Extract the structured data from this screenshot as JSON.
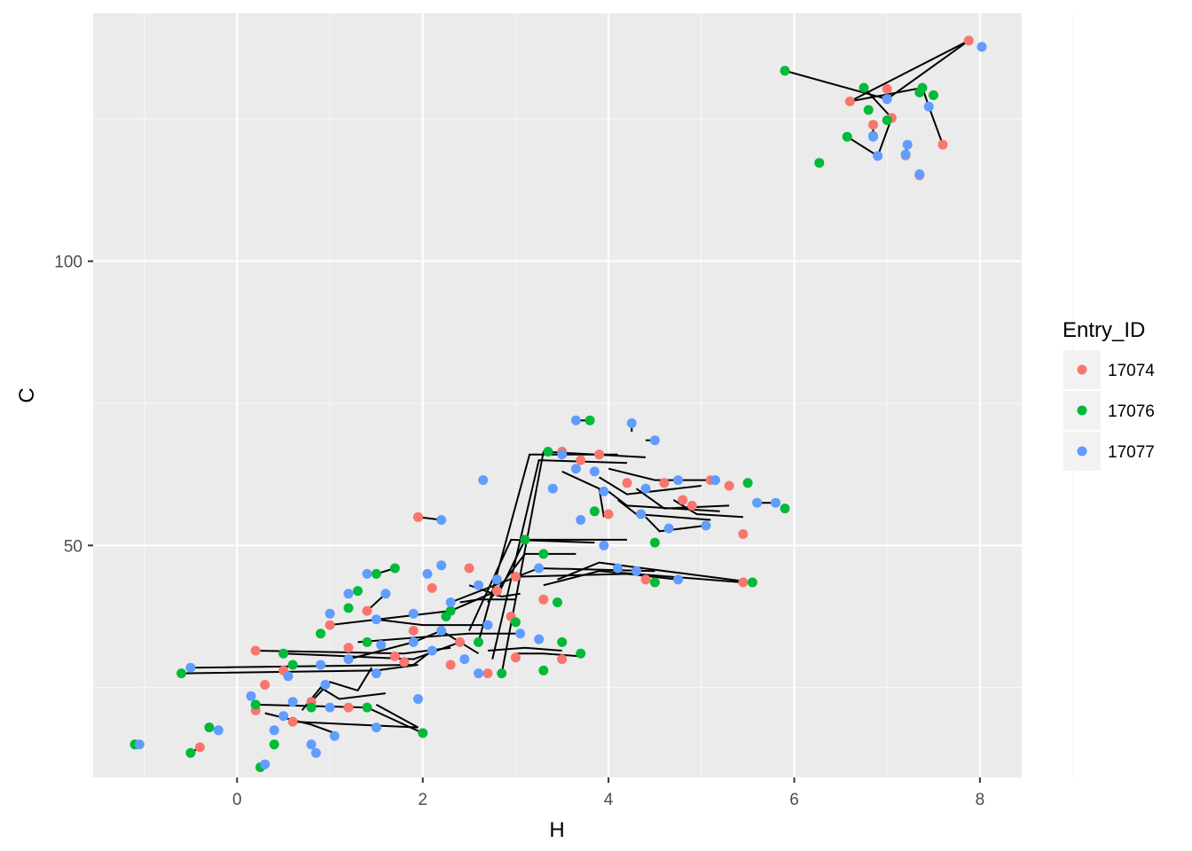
{
  "chart_data": {
    "type": "scatter",
    "title": "",
    "xlabel": "H",
    "ylabel": "C",
    "xlim": [
      -1.55,
      8.45
    ],
    "ylim": [
      9.2,
      143.6
    ],
    "x_ticks": [
      0,
      2,
      4,
      6,
      8
    ],
    "y_ticks": [
      50,
      100
    ],
    "grid": true,
    "legend_title": "Entry_ID",
    "legend_position": "right",
    "series": [
      {
        "name": "17074",
        "color": "#F8766D",
        "points": [
          [
            7.88,
            138.8
          ],
          [
            6.6,
            128.1
          ],
          [
            7.0,
            130.3
          ],
          [
            7.05,
            125.2
          ],
          [
            7.6,
            120.5
          ],
          [
            7.35,
            115.1
          ],
          [
            7.2,
            118.6
          ],
          [
            6.85,
            124.0
          ],
          [
            1.95,
            55.0
          ],
          [
            3.5,
            66.5
          ],
          [
            3.9,
            66.0
          ],
          [
            4.6,
            61.0
          ],
          [
            5.1,
            61.5
          ],
          [
            5.3,
            60.5
          ],
          [
            5.45,
            52.0
          ],
          [
            5.45,
            43.5
          ],
          [
            4.9,
            57.0
          ],
          [
            3.5,
            30.0
          ],
          [
            3.0,
            30.3
          ],
          [
            2.4,
            33.0
          ],
          [
            1.0,
            36.0
          ],
          [
            0.2,
            31.5
          ],
          [
            0.3,
            25.5
          ],
          [
            0.5,
            28.0
          ],
          [
            1.2,
            32.0
          ],
          [
            1.8,
            29.5
          ],
          [
            2.3,
            29.0
          ],
          [
            2.8,
            42.0
          ],
          [
            3.3,
            40.5
          ],
          [
            -0.4,
            14.5
          ],
          [
            0.8,
            22.5
          ],
          [
            0.6,
            19.0
          ],
          [
            1.4,
            38.5
          ],
          [
            1.9,
            35.0
          ],
          [
            2.1,
            42.5
          ],
          [
            2.7,
            27.5
          ],
          [
            4.2,
            61.0
          ],
          [
            4.8,
            58.0
          ],
          [
            4.0,
            55.5
          ],
          [
            3.7,
            65.0
          ],
          [
            4.4,
            44.0
          ],
          [
            3.0,
            44.5
          ],
          [
            1.2,
            21.5
          ],
          [
            0.2,
            21.0
          ],
          [
            2.5,
            46.0
          ],
          [
            1.7,
            30.5
          ],
          [
            2.95,
            37.5
          ]
        ]
      },
      {
        "name": "17076",
        "color": "#00BA38",
        "points": [
          [
            5.9,
            133.5
          ],
          [
            6.75,
            130.5
          ],
          [
            6.8,
            126.6
          ],
          [
            6.57,
            121.9
          ],
          [
            6.27,
            117.3
          ],
          [
            7.0,
            124.8
          ],
          [
            7.35,
            129.7
          ],
          [
            7.5,
            129.2
          ],
          [
            6.85,
            122.0
          ],
          [
            7.38,
            130.5
          ],
          [
            3.8,
            72.0
          ],
          [
            3.35,
            66.5
          ],
          [
            3.85,
            56.0
          ],
          [
            3.3,
            48.5
          ],
          [
            3.1,
            51.0
          ],
          [
            5.5,
            61.0
          ],
          [
            5.9,
            56.5
          ],
          [
            4.5,
            50.5
          ],
          [
            5.55,
            43.5
          ],
          [
            4.5,
            43.5
          ],
          [
            3.7,
            31.0
          ],
          [
            2.85,
            27.5
          ],
          [
            3.45,
            40.0
          ],
          [
            1.5,
            45.0
          ],
          [
            1.3,
            42.0
          ],
          [
            1.2,
            39.0
          ],
          [
            0.9,
            34.5
          ],
          [
            0.5,
            31.0
          ],
          [
            -0.6,
            27.5
          ],
          [
            -0.5,
            13.5
          ],
          [
            -1.1,
            15.0
          ],
          [
            0.25,
            11.0
          ],
          [
            -0.3,
            18.0
          ],
          [
            0.4,
            15.0
          ],
          [
            2.0,
            17.0
          ],
          [
            1.4,
            21.5
          ],
          [
            0.8,
            21.5
          ],
          [
            0.2,
            22.0
          ],
          [
            0.6,
            29.0
          ],
          [
            1.4,
            33.0
          ],
          [
            2.3,
            38.5
          ],
          [
            2.6,
            33.0
          ],
          [
            3.0,
            36.5
          ],
          [
            3.5,
            33.0
          ],
          [
            1.7,
            46.0
          ],
          [
            2.25,
            37.5
          ],
          [
            3.3,
            28.0
          ]
        ]
      },
      {
        "name": "17077",
        "color": "#619CFF",
        "points": [
          [
            8.02,
            137.7
          ],
          [
            7.0,
            128.5
          ],
          [
            7.45,
            127.2
          ],
          [
            6.9,
            118.5
          ],
          [
            7.2,
            118.8
          ],
          [
            7.22,
            120.5
          ],
          [
            7.35,
            115.3
          ],
          [
            6.85,
            121.9
          ],
          [
            3.65,
            72.0
          ],
          [
            4.25,
            71.5
          ],
          [
            4.5,
            68.5
          ],
          [
            2.2,
            54.5
          ],
          [
            2.65,
            61.5
          ],
          [
            3.5,
            66.0
          ],
          [
            3.65,
            63.5
          ],
          [
            3.85,
            63.0
          ],
          [
            4.4,
            60.0
          ],
          [
            4.75,
            61.5
          ],
          [
            5.15,
            61.5
          ],
          [
            5.6,
            57.5
          ],
          [
            5.8,
            57.5
          ],
          [
            5.05,
            53.5
          ],
          [
            4.65,
            53.0
          ],
          [
            4.35,
            55.5
          ],
          [
            3.95,
            59.5
          ],
          [
            3.4,
            60.0
          ],
          [
            3.7,
            54.5
          ],
          [
            3.95,
            50.0
          ],
          [
            4.1,
            46.0
          ],
          [
            4.3,
            45.5
          ],
          [
            4.75,
            44.0
          ],
          [
            3.25,
            46.0
          ],
          [
            2.8,
            44.0
          ],
          [
            2.6,
            43.0
          ],
          [
            2.2,
            46.5
          ],
          [
            2.05,
            45.0
          ],
          [
            1.4,
            45.0
          ],
          [
            1.2,
            41.5
          ],
          [
            1.0,
            38.0
          ],
          [
            1.5,
            37.0
          ],
          [
            1.9,
            38.0
          ],
          [
            2.3,
            40.0
          ],
          [
            2.7,
            36.0
          ],
          [
            3.05,
            34.5
          ],
          [
            3.25,
            33.5
          ],
          [
            2.1,
            31.5
          ],
          [
            1.9,
            33.0
          ],
          [
            1.55,
            32.5
          ],
          [
            1.2,
            30.0
          ],
          [
            0.9,
            29.0
          ],
          [
            0.55,
            27.0
          ],
          [
            -0.5,
            28.5
          ],
          [
            -1.05,
            15.0
          ],
          [
            -0.2,
            17.5
          ],
          [
            0.3,
            11.5
          ],
          [
            0.4,
            17.5
          ],
          [
            0.8,
            15.0
          ],
          [
            0.85,
            13.5
          ],
          [
            1.05,
            16.5
          ],
          [
            1.5,
            18.0
          ],
          [
            1.95,
            23.0
          ],
          [
            0.6,
            22.5
          ],
          [
            0.15,
            23.5
          ],
          [
            0.95,
            25.5
          ],
          [
            1.5,
            27.5
          ],
          [
            2.45,
            30.0
          ],
          [
            2.6,
            27.5
          ],
          [
            2.2,
            35.0
          ],
          [
            1.6,
            41.5
          ],
          [
            1.0,
            21.5
          ],
          [
            0.5,
            20.0
          ]
        ]
      }
    ],
    "paths": [
      [
        [
          5.9,
          133.5
        ],
        [
          7.0,
          128.5
        ],
        [
          7.88,
          138.8
        ],
        [
          6.6,
          128.1
        ],
        [
          7.38,
          130.5
        ],
        [
          7.45,
          127.2
        ],
        [
          7.6,
          120.5
        ]
      ],
      [
        [
          6.57,
          121.9
        ],
        [
          6.9,
          118.5
        ],
        [
          7.05,
          125.2
        ],
        [
          6.75,
          130.5
        ]
      ],
      [
        [
          7.22,
          120.5
        ],
        [
          7.2,
          118.6
        ]
      ],
      [
        [
          7.35,
          115.3
        ],
        [
          7.35,
          115.1
        ]
      ],
      [
        [
          6.85,
          122.0
        ],
        [
          6.85,
          124.0
        ]
      ],
      [
        [
          1.95,
          55.0
        ],
        [
          2.2,
          54.5
        ]
      ],
      [
        [
          3.65,
          72.0
        ],
        [
          3.8,
          72.0
        ]
      ],
      [
        [
          4.25,
          71.5
        ],
        [
          4.25,
          70.0
        ]
      ],
      [
        [
          4.4,
          68.5
        ],
        [
          4.5,
          68.5
        ]
      ],
      [
        [
          2.85,
          27.5
        ],
        [
          3.3,
          66.5
        ],
        [
          4.4,
          65.5
        ]
      ],
      [
        [
          2.75,
          30.0
        ],
        [
          3.25,
          65.0
        ],
        [
          4.2,
          64.5
        ]
      ],
      [
        [
          2.6,
          33.0
        ],
        [
          3.15,
          66.0
        ],
        [
          4.1,
          66.0
        ]
      ],
      [
        [
          2.5,
          35.0
        ],
        [
          2.95,
          51.0
        ],
        [
          3.85,
          50.5
        ]
      ],
      [
        [
          2.7,
          40.0
        ],
        [
          3.1,
          48.5
        ],
        [
          3.65,
          48.5
        ]
      ],
      [
        [
          2.8,
          41.0
        ],
        [
          3.1,
          51.0
        ],
        [
          4.2,
          51.0
        ]
      ],
      [
        [
          3.45,
          44.0
        ],
        [
          3.9,
          47.0
        ],
        [
          5.55,
          43.5
        ]
      ],
      [
        [
          3.3,
          43.0
        ],
        [
          3.9,
          45.5
        ],
        [
          5.45,
          43.5
        ]
      ],
      [
        [
          3.0,
          44.5
        ],
        [
          4.2,
          45.0
        ],
        [
          4.75,
          44.0
        ]
      ],
      [
        [
          2.3,
          40.0
        ],
        [
          3.25,
          46.0
        ],
        [
          4.5,
          45.5
        ]
      ],
      [
        [
          4.0,
          59.5
        ],
        [
          4.2,
          57.0
        ],
        [
          5.2,
          56.0
        ]
      ],
      [
        [
          4.1,
          58.0
        ],
        [
          4.3,
          55.5
        ],
        [
          5.1,
          54.5
        ]
      ],
      [
        [
          4.3,
          60.0
        ],
        [
          4.6,
          56.5
        ],
        [
          5.3,
          57.0
        ]
      ],
      [
        [
          4.4,
          55.0
        ],
        [
          4.55,
          52.5
        ],
        [
          5.05,
          53.5
        ]
      ],
      [
        [
          3.9,
          62.0
        ],
        [
          4.2,
          59.0
        ],
        [
          5.0,
          60.5
        ]
      ],
      [
        [
          4.0,
          63.5
        ],
        [
          4.5,
          61.5
        ],
        [
          5.2,
          61.5
        ]
      ],
      [
        [
          3.5,
          63.0
        ],
        [
          3.9,
          60.0
        ],
        [
          3.95,
          55.0
        ]
      ],
      [
        [
          4.7,
          58.0
        ],
        [
          4.95,
          55.5
        ],
        [
          5.45,
          55.0
        ]
      ],
      [
        [
          5.6,
          57.5
        ],
        [
          5.8,
          57.5
        ]
      ],
      [
        [
          -0.5,
          28.5
        ],
        [
          1.9,
          29.0
        ],
        [
          2.1,
          31.5
        ]
      ],
      [
        [
          -0.6,
          27.5
        ],
        [
          1.5,
          28.0
        ],
        [
          1.95,
          29.0
        ]
      ],
      [
        [
          0.2,
          31.5
        ],
        [
          1.8,
          31.0
        ],
        [
          2.3,
          32.0
        ]
      ],
      [
        [
          0.5,
          31.0
        ],
        [
          1.9,
          30.0
        ],
        [
          2.4,
          33.0
        ]
      ],
      [
        [
          1.0,
          36.0
        ],
        [
          2.3,
          38.5
        ],
        [
          2.8,
          42.0
        ]
      ],
      [
        [
          0.2,
          22.0
        ],
        [
          1.4,
          21.5
        ],
        [
          2.0,
          17.0
        ]
      ],
      [
        [
          0.6,
          19.0
        ],
        [
          1.95,
          18.0
        ],
        [
          1.5,
          22.0
        ]
      ],
      [
        [
          0.3,
          20.5
        ],
        [
          0.8,
          18.5
        ],
        [
          1.05,
          17.0
        ]
      ],
      [
        [
          0.8,
          22.5
        ],
        [
          1.0,
          26.0
        ],
        [
          1.3,
          24.5
        ],
        [
          1.45,
          28.5
        ]
      ],
      [
        [
          0.7,
          21.0
        ],
        [
          0.9,
          25.0
        ],
        [
          1.1,
          23.0
        ],
        [
          1.6,
          24.0
        ]
      ],
      [
        [
          1.2,
          30.0
        ],
        [
          1.9,
          33.0
        ],
        [
          2.2,
          35.0
        ],
        [
          2.6,
          31.0
        ]
      ],
      [
        [
          1.5,
          37.0
        ],
        [
          2.0,
          36.0
        ],
        [
          2.4,
          36.0
        ],
        [
          2.7,
          36.0
        ]
      ],
      [
        [
          1.3,
          33.0
        ],
        [
          2.1,
          34.0
        ],
        [
          2.5,
          34.5
        ],
        [
          3.05,
          34.5
        ]
      ],
      [
        [
          3.0,
          31.0
        ],
        [
          3.3,
          31.0
        ],
        [
          3.7,
          30.5
        ]
      ],
      [
        [
          2.7,
          31.5
        ],
        [
          3.1,
          32.0
        ],
        [
          3.5,
          31.5
        ]
      ],
      [
        [
          2.5,
          43.0
        ],
        [
          2.85,
          41.0
        ],
        [
          3.05,
          41.5
        ]
      ],
      [
        [
          2.4,
          40.0
        ],
        [
          2.6,
          40.5
        ],
        [
          3.0,
          40.5
        ]
      ],
      [
        [
          -1.1,
          15.0
        ],
        [
          -1.05,
          15.0
        ]
      ],
      [
        [
          -0.5,
          13.5
        ],
        [
          -0.4,
          14.5
        ]
      ],
      [
        [
          0.25,
          11.0
        ],
        [
          0.3,
          11.5
        ]
      ],
      [
        [
          -0.3,
          18.0
        ],
        [
          -0.2,
          17.5
        ]
      ],
      [
        [
          1.4,
          38.5
        ],
        [
          1.6,
          41.5
        ]
      ],
      [
        [
          1.7,
          46.0
        ],
        [
          1.5,
          45.0
        ]
      ],
      [
        [
          2.6,
          61.5
        ],
        [
          2.65,
          61.5
        ]
      ]
    ]
  }
}
